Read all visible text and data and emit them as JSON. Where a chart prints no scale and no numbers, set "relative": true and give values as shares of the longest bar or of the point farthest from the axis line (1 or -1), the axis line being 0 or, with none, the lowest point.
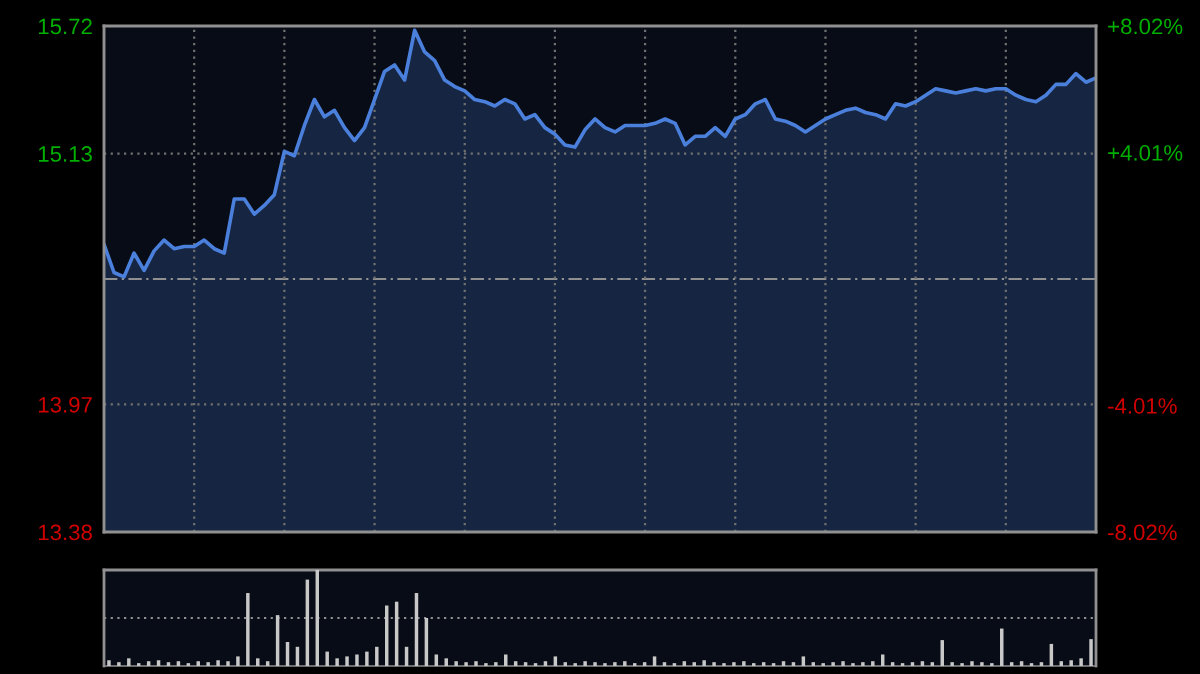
{
  "chart_data": [
    {
      "type": "area",
      "categories": [
        null,
        null,
        null,
        null,
        null,
        null,
        null,
        null,
        null,
        null,
        null,
        null,
        null,
        null,
        null,
        null,
        null,
        null,
        null,
        null,
        null,
        null,
        null,
        null,
        null,
        null,
        null,
        null,
        null,
        null,
        null,
        null,
        null,
        null,
        null,
        null,
        null,
        null,
        null,
        null,
        null,
        null,
        null,
        null,
        null,
        null,
        null,
        null,
        null,
        null,
        null,
        null,
        null,
        null,
        null,
        null,
        null,
        null,
        null,
        null,
        null,
        null,
        null,
        null,
        null,
        null,
        null,
        null,
        null,
        null,
        null,
        null,
        null,
        null,
        null,
        null,
        null,
        null,
        null,
        null,
        null,
        null,
        null,
        null,
        null,
        null,
        null,
        null,
        null,
        null,
        null,
        null,
        null,
        null,
        null,
        null,
        null,
        null,
        null,
        null
      ],
      "series": [
        {
          "color": "#4a80dc",
          "values": [
            14.71,
            14.58,
            14.56,
            14.67,
            14.59,
            14.68,
            14.73,
            14.69,
            14.7,
            14.7,
            14.73,
            14.69,
            14.67,
            14.92,
            14.92,
            14.85,
            14.89,
            14.94,
            15.14,
            15.12,
            15.26,
            15.38,
            15.3,
            15.33,
            15.25,
            15.19,
            15.25,
            15.38,
            15.51,
            15.54,
            15.47,
            15.7,
            15.6,
            15.56,
            15.47,
            15.44,
            15.42,
            15.38,
            15.37,
            15.35,
            15.38,
            15.36,
            15.29,
            15.31,
            15.25,
            15.22,
            15.17,
            15.16,
            15.24,
            15.29,
            15.25,
            15.23,
            15.26,
            15.26,
            15.26,
            15.27,
            15.29,
            15.27,
            15.17,
            15.21,
            15.21,
            15.25,
            15.21,
            15.29,
            15.31,
            15.36,
            15.38,
            15.29,
            15.28,
            15.26,
            15.23,
            15.26,
            15.29,
            15.31,
            15.33,
            15.34,
            15.32,
            15.31,
            15.29,
            15.36,
            15.35,
            15.37,
            15.4,
            15.43,
            15.42,
            15.41,
            15.42,
            15.43,
            15.42,
            15.43,
            15.43,
            15.4,
            15.38,
            15.37,
            15.4,
            15.45,
            15.45,
            15.5,
            15.46,
            15.48
          ]
        }
      ],
      "ylim": [
        13.38,
        15.72
      ],
      "yticks": [
        15.72,
        15.13,
        13.97,
        13.38
      ],
      "y2lim": [
        -8.02,
        8.02
      ],
      "y2ticks": [
        {
          "value": 8.02,
          "label": "+8.02%"
        },
        {
          "value": 4.01,
          "label": "+4.01%"
        },
        {
          "value": -4.01,
          "label": "-4.01%"
        },
        {
          "value": -8.02,
          "label": "-8.02%"
        }
      ],
      "ref_lines": [
        {
          "axis": "y",
          "value": 14.55,
          "line_style": "dashed"
        }
      ],
      "grid": true,
      "tick_labels": "y"
    },
    {
      "type": "bar",
      "relative": true,
      "ref_lines": [
        {
          "axis": "y",
          "value": 0.5,
          "line_style": "dotted"
        }
      ],
      "tick_labels": false,
      "categories": [
        null,
        null,
        null,
        null,
        null,
        null,
        null,
        null,
        null,
        null,
        null,
        null,
        null,
        null,
        null,
        null,
        null,
        null,
        null,
        null,
        null,
        null,
        null,
        null,
        null,
        null,
        null,
        null,
        null,
        null,
        null,
        null,
        null,
        null,
        null,
        null,
        null,
        null,
        null,
        null,
        null,
        null,
        null,
        null,
        null,
        null,
        null,
        null,
        null,
        null,
        null,
        null,
        null,
        null,
        null,
        null,
        null,
        null,
        null,
        null,
        null,
        null,
        null,
        null,
        null,
        null,
        null,
        null,
        null,
        null,
        null,
        null,
        null,
        null,
        null,
        null,
        null,
        null,
        null,
        null,
        null,
        null,
        null,
        null,
        null,
        null,
        null,
        null,
        null,
        null,
        null,
        null,
        null,
        null,
        null,
        null,
        null,
        null,
        null,
        null
      ],
      "series": [
        {
          "color": "#c8c8c8",
          "values": [
            0.06,
            0.04,
            0.08,
            0.03,
            0.05,
            0.06,
            0.04,
            0.05,
            0.03,
            0.05,
            0.04,
            0.06,
            0.05,
            0.1,
            0.76,
            0.08,
            0.05,
            0.53,
            0.25,
            0.2,
            0.9,
            1.0,
            0.15,
            0.08,
            0.1,
            0.12,
            0.15,
            0.2,
            0.63,
            0.67,
            0.2,
            0.76,
            0.5,
            0.12,
            0.08,
            0.05,
            0.04,
            0.05,
            0.03,
            0.04,
            0.12,
            0.05,
            0.04,
            0.03,
            0.05,
            0.1,
            0.04,
            0.03,
            0.05,
            0.04,
            0.03,
            0.04,
            0.05,
            0.03,
            0.04,
            0.1,
            0.04,
            0.03,
            0.05,
            0.04,
            0.06,
            0.04,
            0.03,
            0.04,
            0.05,
            0.03,
            0.04,
            0.03,
            0.05,
            0.04,
            0.1,
            0.04,
            0.03,
            0.04,
            0.05,
            0.03,
            0.04,
            0.05,
            0.12,
            0.04,
            0.03,
            0.04,
            0.05,
            0.04,
            0.27,
            0.04,
            0.03,
            0.05,
            0.04,
            0.03,
            0.39,
            0.04,
            0.05,
            0.03,
            0.04,
            0.23,
            0.05,
            0.06,
            0.08,
            0.28
          ]
        }
      ]
    }
  ]
}
